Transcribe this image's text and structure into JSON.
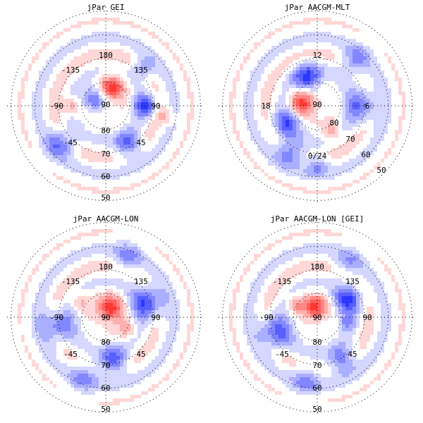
{
  "colors": {
    "positive": "#e8413c",
    "negative": "#2f3bd6",
    "background": "#ffffff",
    "grid": "#000000"
  },
  "chart_data": [
    {
      "type": "heatmap",
      "title": "jPar GEI",
      "projection": "polar",
      "lat_labels": [
        "90",
        "80",
        "70",
        "60",
        "50"
      ],
      "lon_labels": [
        "180",
        "-135",
        "135",
        "-90",
        "90",
        "-45",
        "45"
      ],
      "blobs": [
        {
          "az": 20,
          "r": 0.2,
          "val": 0.9,
          "s": 0.09
        },
        {
          "az": -60,
          "r": 0.15,
          "val": -0.8,
          "s": 0.08
        },
        {
          "az": 90,
          "r": 0.4,
          "val": -0.9,
          "s": 0.08
        },
        {
          "az": 150,
          "r": 0.45,
          "val": -0.8,
          "s": 0.09
        },
        {
          "az": -130,
          "r": 0.6,
          "val": -0.7,
          "s": 0.1
        },
        {
          "az": 100,
          "r": 0.6,
          "val": 0.4,
          "s": 0.06
        },
        {
          "az": -90,
          "r": 0.35,
          "val": 0.5,
          "s": 0.06
        },
        {
          "az": 45,
          "r": 0.55,
          "val": -0.6,
          "s": 0.08
        }
      ]
    },
    {
      "type": "heatmap",
      "title": "jPar AACGM-MLT",
      "projection": "polar",
      "lat_labels": [
        "90",
        "80",
        "70",
        "60",
        "50"
      ],
      "mlt_labels": [
        "12",
        "18",
        "6",
        "0/24"
      ],
      "blobs": [
        {
          "az": -80,
          "r": 0.15,
          "val": 0.95,
          "s": 0.09
        },
        {
          "az": -20,
          "r": 0.3,
          "val": -0.9,
          "s": 0.1
        },
        {
          "az": -120,
          "r": 0.35,
          "val": -0.8,
          "s": 0.1
        },
        {
          "az": 90,
          "r": 0.45,
          "val": -0.7,
          "s": 0.12
        },
        {
          "az": 150,
          "r": 0.3,
          "val": 0.5,
          "s": 0.06
        },
        {
          "az": -150,
          "r": 0.55,
          "val": -0.7,
          "s": 0.1
        },
        {
          "az": 40,
          "r": 0.6,
          "val": -0.6,
          "s": 0.1
        },
        {
          "az": 180,
          "r": 0.6,
          "val": -0.5,
          "s": 0.08
        }
      ]
    },
    {
      "type": "heatmap",
      "title": "jPar AACGM-LON",
      "projection": "polar",
      "lat_labels": [
        "90",
        "80",
        "70",
        "60",
        "50"
      ],
      "lon_labels": [
        "180",
        "-135",
        "135",
        "-90",
        "90",
        "-45",
        "45"
      ],
      "blobs": [
        {
          "az": 30,
          "r": 0.1,
          "val": 1.0,
          "s": 0.09
        },
        {
          "az": 70,
          "r": 0.45,
          "val": -0.9,
          "s": 0.12
        },
        {
          "az": -100,
          "r": 0.5,
          "val": -0.7,
          "s": 0.12
        },
        {
          "az": 170,
          "r": 0.45,
          "val": -0.8,
          "s": 0.1
        },
        {
          "az": -60,
          "r": 0.3,
          "val": 0.4,
          "s": 0.06
        },
        {
          "az": 120,
          "r": 0.25,
          "val": 0.4,
          "s": 0.06
        },
        {
          "az": -160,
          "r": 0.65,
          "val": -0.5,
          "s": 0.1
        },
        {
          "az": 20,
          "r": 0.65,
          "val": -0.5,
          "s": 0.1
        }
      ]
    },
    {
      "type": "heatmap",
      "title": "jPar AACGM-LON [GEI]",
      "projection": "polar",
      "lat_labels": [
        "90",
        "80",
        "70",
        "60",
        "50"
      ],
      "lon_labels": [
        "180",
        "-135",
        "135",
        "-90",
        "90",
        "-45",
        "45"
      ],
      "blobs": [
        {
          "az": -10,
          "r": 0.1,
          "val": 1.0,
          "s": 0.08
        },
        {
          "az": 60,
          "r": 0.35,
          "val": -0.9,
          "s": 0.1
        },
        {
          "az": -110,
          "r": 0.45,
          "val": -0.8,
          "s": 0.12
        },
        {
          "az": 150,
          "r": 0.5,
          "val": -0.7,
          "s": 0.1
        },
        {
          "az": -60,
          "r": 0.25,
          "val": 0.5,
          "s": 0.06
        },
        {
          "az": 100,
          "r": 0.3,
          "val": -0.5,
          "s": 0.06
        },
        {
          "az": -170,
          "r": 0.65,
          "val": -0.5,
          "s": 0.1
        },
        {
          "az": 30,
          "r": 0.65,
          "val": -0.4,
          "s": 0.1
        }
      ]
    }
  ]
}
